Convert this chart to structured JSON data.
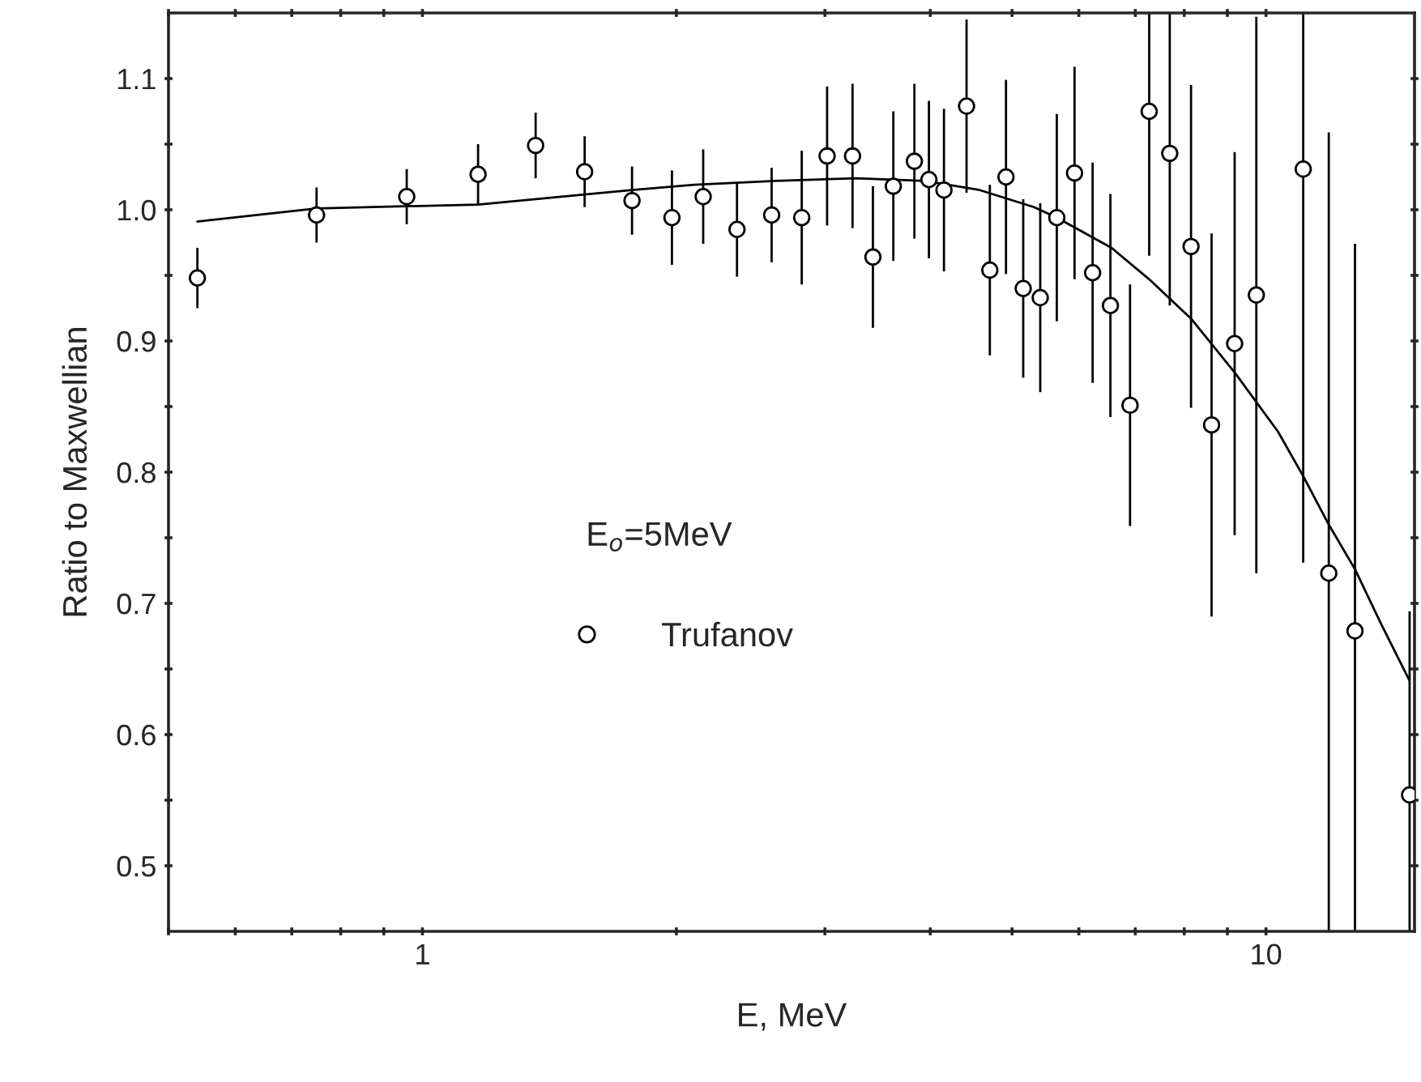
{
  "chart_data": {
    "type": "scatter",
    "xlabel": "E, MeV",
    "ylabel": "Ratio to Maxwellian",
    "log": "x",
    "grid": false,
    "legend": "center",
    "xlim": [
      0.5,
      15
    ],
    "ylim": [
      0.45,
      1.15
    ],
    "xticks": [
      {
        "value": 0.5,
        "label": null
      },
      {
        "value": 0.6,
        "label": null
      },
      {
        "value": 0.7,
        "label": null
      },
      {
        "value": 0.8,
        "label": null
      },
      {
        "value": 0.9,
        "label": null
      },
      1,
      {
        "value": 2,
        "label": null
      },
      {
        "value": 3,
        "label": null
      },
      {
        "value": 4,
        "label": null
      },
      {
        "value": 5,
        "label": null
      },
      {
        "value": 6,
        "label": null
      },
      {
        "value": 7,
        "label": null
      },
      {
        "value": 8,
        "label": null
      },
      {
        "value": 9,
        "label": null
      },
      10
    ],
    "yticks": [
      0.5,
      {
        "value": 0.55,
        "label": null
      },
      0.6,
      {
        "value": 0.65,
        "label": null
      },
      0.7,
      {
        "value": 0.75,
        "label": null
      },
      0.8,
      {
        "value": 0.85,
        "label": null
      },
      0.9,
      {
        "value": 0.95,
        "label": null
      },
      {
        "value": 1.0,
        "label": "1.0"
      },
      {
        "value": 1.05,
        "label": null
      },
      1.1
    ],
    "annotations": [
      "E$_{o}$=5MeV"
    ],
    "series": [
      {
        "name": "Trufanov",
        "marker": "circle",
        "color": "#000000",
        "x": [
          0.541,
          0.749,
          0.958,
          1.164,
          1.362,
          1.557,
          1.772,
          1.976,
          2.152,
          2.36,
          2.594,
          2.816,
          3.018,
          3.235,
          3.42,
          3.616,
          3.83,
          3.985,
          4.152,
          4.416,
          4.706,
          4.918,
          5.155,
          5.4,
          5.65,
          5.93,
          6.23,
          6.54,
          6.9,
          7.27,
          7.69,
          8.15,
          8.62,
          9.18,
          9.74,
          11.07,
          11.87,
          12.75,
          14.8
        ],
        "values": [
          0.948,
          0.996,
          1.01,
          1.027,
          1.049,
          1.029,
          1.007,
          0.994,
          1.01,
          0.985,
          0.996,
          0.994,
          1.041,
          1.041,
          0.964,
          1.018,
          1.037,
          1.023,
          1.015,
          1.079,
          0.954,
          1.025,
          0.94,
          0.933,
          0.994,
          1.028,
          0.952,
          0.927,
          0.851,
          1.075,
          1.043,
          0.972,
          0.836,
          0.898,
          0.935,
          1.031,
          0.723,
          0.679,
          0.554
        ],
        "errors": [
          0.023,
          0.021,
          0.021,
          0.023,
          0.025,
          0.027,
          0.026,
          0.036,
          0.036,
          0.036,
          0.036,
          0.051,
          0.053,
          0.055,
          0.054,
          0.057,
          0.059,
          0.06,
          0.062,
          0.066,
          0.065,
          0.074,
          0.068,
          0.072,
          0.079,
          0.081,
          0.084,
          0.085,
          0.092,
          [
            0.965,
            1.15
          ],
          [
            0.927,
            1.15
          ],
          0.123,
          0.146,
          0.146,
          0.212,
          [
            0.731,
            1.15
          ],
          [
            0.45,
            1.059
          ],
          [
            0.45,
            0.974
          ],
          [
            0.45,
            0.694
          ]
        ]
      },
      {
        "type": "line",
        "color": "#000000",
        "line_style": "solid",
        "marker": "none",
        "x": [
          0.541,
          0.749,
          1.164,
          1.772,
          2.1,
          2.62,
          3.27,
          3.94,
          4.58,
          5.31,
          5.65,
          6.56,
          7.27,
          8.15,
          9.18,
          10.33,
          11.07,
          11.87,
          12.75,
          13.7,
          14.8
        ],
        "values": [
          0.991,
          1.001,
          1.004,
          1.015,
          1.019,
          1.022,
          1.024,
          1.022,
          1.015,
          1.002,
          0.994,
          0.971,
          0.947,
          0.917,
          0.876,
          0.831,
          0.797,
          0.76,
          0.726,
          0.684,
          0.641
        ]
      }
    ]
  }
}
